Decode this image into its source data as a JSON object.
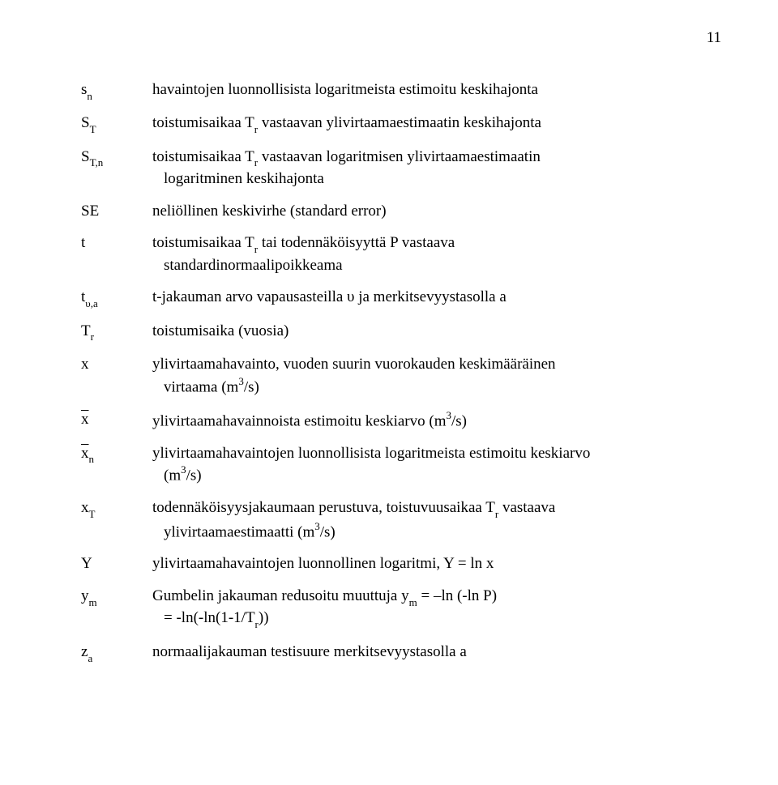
{
  "page_number": "11",
  "rows": {
    "sn": {
      "sym_base": "s",
      "sym_sub": "n",
      "desc": "havaintojen luonnollisista logaritmeista estimoitu keskihajonta"
    },
    "ST": {
      "sym_base": "S",
      "sym_sub": "T",
      "desc_a": "toistumisaikaa T",
      "desc_sub": "r",
      "desc_b": " vastaavan ylivirtaamaestimaatin keskihajonta"
    },
    "STn": {
      "sym_base": "S",
      "sym_sub": "T,n",
      "desc_a": "toistumisaikaa T",
      "desc_sub": "r",
      "desc_b": " vastaavan logaritmisen ylivirtaamaestimaatin",
      "desc_line2": "logaritminen keskihajonta"
    },
    "SE": {
      "sym": "SE",
      "desc": "neliöllinen keskivirhe (standard error)"
    },
    "t": {
      "sym": "t",
      "desc_a": "toistumisaikaa T",
      "desc_sub": "r",
      "desc_b": " tai todennäköisyyttä P vastaava",
      "desc_line2": "standardinormaalipoikkeama"
    },
    "tua": {
      "sym_base": "t",
      "sym_sub": "υ,a",
      "desc": "t-jakauman arvo vapausasteilla υ ja merkitsevyystasolla a"
    },
    "Tr": {
      "sym_base": "T",
      "sym_sub": "r",
      "desc": "toistumisaika (vuosia)"
    },
    "x": {
      "sym": "x",
      "desc_a": "ylivirtaamahavainto, vuoden suurin vuorokauden keskimääräinen",
      "desc_line2_a": "virtaama (m",
      "desc_line2_sup": "3",
      "desc_line2_b": "/s)"
    },
    "xbar": {
      "sym": "x",
      "desc_a": "ylivirtaamahavainnoista estimoitu keskiarvo (m",
      "desc_sup": "3",
      "desc_b": "/s)"
    },
    "xbarn": {
      "sym": "x",
      "sym_sub": "n",
      "desc_a": "ylivirtaamahavaintojen luonnollisista logaritmeista estimoitu keskiarvo",
      "desc_line2_a": "(m",
      "desc_line2_sup": "3",
      "desc_line2_b": "/s)"
    },
    "xT": {
      "sym_base": "x",
      "sym_sub": "T",
      "desc_a": "todennäköisyysjakaumaan perustuva, toistuvuusaikaa T",
      "desc_sub": "r",
      "desc_b": " vastaava",
      "desc_line2_a": "ylivirtaamaestimaatti (m",
      "desc_line2_sup": "3",
      "desc_line2_b": "/s)"
    },
    "Y": {
      "sym": "Y",
      "desc": "ylivirtaamahavaintojen luonnollinen logaritmi, Y = ln x"
    },
    "ym": {
      "sym_base": "y",
      "sym_sub": "m",
      "desc_a": "Gumbelin jakauman redusoitu muuttuja y",
      "desc_sub": "m",
      "desc_b": " = –ln (-ln P)",
      "desc_line2_a": "= -ln(-ln(1-1/T",
      "desc_line2_sub": "r",
      "desc_line2_b": "))"
    },
    "za": {
      "sym_base": "z",
      "sym_sub": "a",
      "desc": "normaalijakauman testisuure merkitsevyystasolla a"
    }
  }
}
